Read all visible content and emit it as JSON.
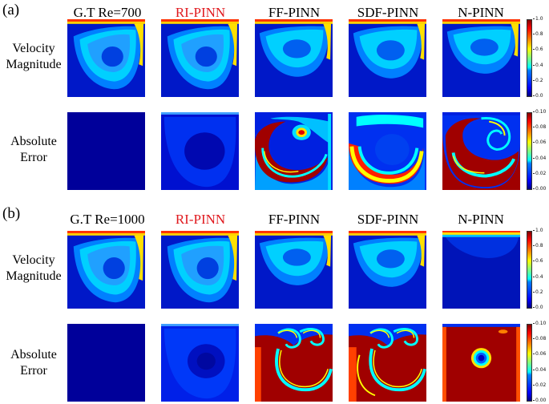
{
  "panels": [
    {
      "label": "(a)",
      "columns": [
        {
          "title": "G.T Re=700",
          "highlight": false
        },
        {
          "title": "RI-PINN",
          "highlight": true
        },
        {
          "title": "FF-PINN",
          "highlight": false
        },
        {
          "title": "SDF-PINN",
          "highlight": false
        },
        {
          "title": "N-PINN",
          "highlight": false
        }
      ],
      "rows": [
        {
          "label_line1": "Velocity",
          "label_line2": "Magnitude",
          "colorbar": {
            "min": 0.0,
            "max": 1.0,
            "ticks": [
              "1.0",
              "0.8",
              "0.6",
              "0.4",
              "0.2",
              "0.0"
            ]
          }
        },
        {
          "label_line1": "Absolute",
          "label_line2": "Error",
          "colorbar": {
            "min": 0.0,
            "max": 0.1,
            "ticks": [
              "0.10",
              "0.08",
              "0.06",
              "0.04",
              "0.02",
              "0.00"
            ]
          }
        }
      ]
    },
    {
      "label": "(b)",
      "columns": [
        {
          "title": "G.T Re=1000",
          "highlight": false
        },
        {
          "title": "RI-PINN",
          "highlight": true
        },
        {
          "title": "FF-PINN",
          "highlight": false
        },
        {
          "title": "SDF-PINN",
          "highlight": false
        },
        {
          "title": "N-PINN",
          "highlight": false
        }
      ],
      "rows": [
        {
          "label_line1": "Velocity",
          "label_line2": "Magnitude",
          "colorbar": {
            "min": 0.0,
            "max": 1.0,
            "ticks": [
              "1.0",
              "0.8",
              "0.6",
              "0.4",
              "0.2",
              "0.0"
            ]
          }
        },
        {
          "label_line1": "Absolute",
          "label_line2": "Error",
          "colorbar": {
            "min": 0.0,
            "max": 0.1,
            "ticks": [
              "0.10",
              "0.08",
              "0.06",
              "0.04",
              "0.02",
              "0.00"
            ]
          }
        }
      ]
    }
  ],
  "colormap": "jet",
  "colors": {
    "highlight_title": "#e0191e",
    "low": "#00007f",
    "high": "#7f0000"
  }
}
